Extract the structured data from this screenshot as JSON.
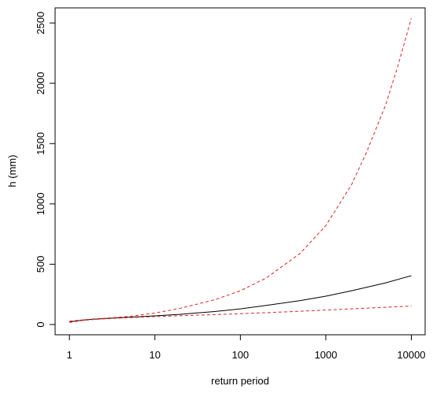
{
  "chart_data": {
    "type": "line",
    "title": "",
    "xlabel": "return period",
    "ylabel": "h (mm)",
    "x_scale": "log",
    "xlim": [
      0.68,
      14500
    ],
    "ylim": [
      -85,
      2625
    ],
    "x_ticks": [
      1,
      10,
      100,
      1000,
      10000
    ],
    "x_tick_labels": [
      "1",
      "10",
      "100",
      "1000",
      "10000"
    ],
    "y_ticks": [
      0,
      500,
      1000,
      1500,
      2000,
      2500
    ],
    "y_tick_labels": [
      "0",
      "500",
      "1000",
      "1500",
      "2000",
      "2500"
    ],
    "grid": false,
    "legend": "none",
    "series": [
      {
        "role": "estimate",
        "color": "#000000",
        "style": "solid",
        "x": [
          1,
          1.5,
          2,
          3,
          5,
          10,
          20,
          50,
          100,
          200,
          500,
          1000,
          2000,
          5000,
          10000
        ],
        "y": [
          22,
          38,
          45,
          52,
          60,
          72,
          85,
          108,
          130,
          158,
          198,
          235,
          280,
          345,
          405
        ]
      },
      {
        "role": "upper-bound",
        "color": "#d62728",
        "style": "dashed",
        "x": [
          1,
          1.5,
          2,
          3,
          5,
          10,
          20,
          50,
          100,
          200,
          500,
          1000,
          2000,
          3000,
          5000,
          7000,
          10000
        ],
        "y": [
          28,
          40,
          47,
          55,
          67,
          95,
          135,
          205,
          280,
          385,
          590,
          820,
          1160,
          1430,
          1820,
          2150,
          2540
        ]
      },
      {
        "role": "lower-bound",
        "color": "#d62728",
        "style": "dashed",
        "x": [
          1,
          1.5,
          2,
          3,
          5,
          10,
          20,
          50,
          100,
          200,
          500,
          1000,
          2000,
          5000,
          10000
        ],
        "y": [
          18,
          35,
          42,
          50,
          57,
          66,
          73,
          82,
          90,
          98,
          110,
          120,
          130,
          143,
          153
        ]
      }
    ]
  }
}
